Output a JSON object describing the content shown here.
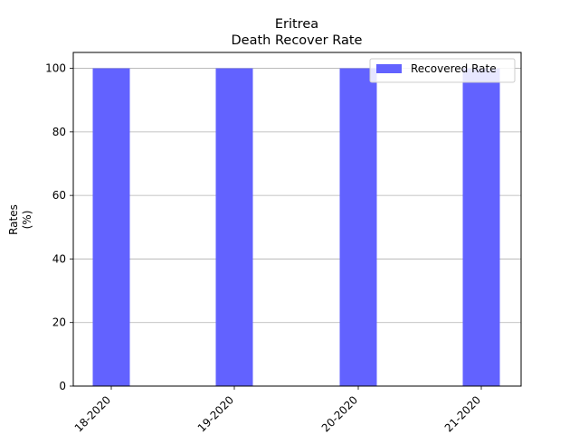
{
  "chart_data": {
    "type": "bar",
    "title": "Eritrea",
    "subtitle": "Death Recover Rate",
    "xlabel": "",
    "ylabel_line1": "Rates",
    "ylabel_line2": "(%)",
    "categories": [
      "18-2020",
      "19-2020",
      "20-2020",
      "21-2020"
    ],
    "series": [
      {
        "name": "Recovered Rate",
        "values": [
          100,
          100,
          100,
          100
        ],
        "color": "#6262ff"
      }
    ],
    "ylim": [
      0,
      105
    ],
    "yticks": [
      0,
      20,
      40,
      60,
      80,
      100
    ],
    "grid": "y",
    "legend_position": "top-right"
  }
}
